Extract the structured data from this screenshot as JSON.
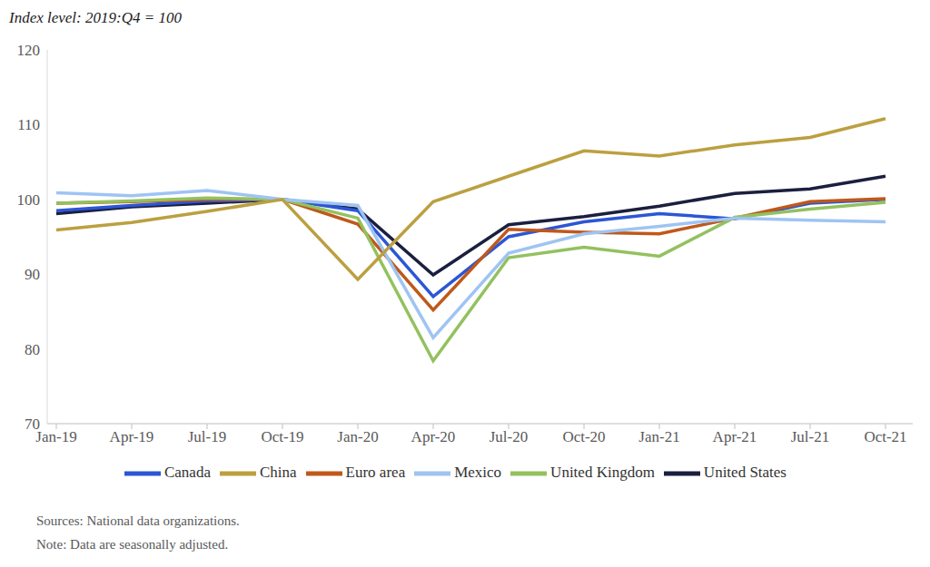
{
  "chart_data": {
    "type": "line",
    "ylabel": "Index level: 2019:Q4 = 100",
    "categories": [
      "Jan-19",
      "Apr-19",
      "Jul-19",
      "Oct-19",
      "Jan-20",
      "Apr-20",
      "Jul-20",
      "Oct-20",
      "Jan-21",
      "Apr-21",
      "Jul-21",
      "Oct-21"
    ],
    "series": [
      {
        "name": "United States",
        "color": "#1b1f3f",
        "values": [
          98.1,
          99.0,
          99.5,
          100,
          98.7,
          89.9,
          96.6,
          97.7,
          99.1,
          100.8,
          101.4,
          103.1
        ]
      },
      {
        "name": "Canada",
        "color": "#2c56d4",
        "values": [
          98.5,
          99.2,
          99.8,
          100,
          98.5,
          87.0,
          95.0,
          97.0,
          98.1,
          97.4,
          99.5,
          100.0
        ]
      },
      {
        "name": "Euro area",
        "color": "#c0581a",
        "values": [
          99.5,
          99.7,
          100.0,
          100,
          96.7,
          85.2,
          96.0,
          95.6,
          95.4,
          97.5,
          99.7,
          100.1
        ]
      },
      {
        "name": "United Kingdom",
        "color": "#93c15f",
        "values": [
          99.5,
          99.8,
          100.2,
          100,
          97.5,
          78.4,
          92.2,
          93.6,
          92.4,
          97.6,
          98.7,
          99.6
        ]
      },
      {
        "name": "Mexico",
        "color": "#9fc4f2",
        "values": [
          100.9,
          100.5,
          101.2,
          100,
          99.2,
          81.5,
          92.8,
          95.4,
          96.4,
          97.5,
          97.2,
          97.0
        ]
      },
      {
        "name": "China",
        "color": "#bba040",
        "values": [
          95.9,
          96.9,
          98.4,
          100,
          89.3,
          99.7,
          103.1,
          106.5,
          105.8,
          107.3,
          108.3,
          110.8
        ]
      }
    ],
    "ylim": [
      70,
      120
    ],
    "yticks": [
      70,
      80,
      90,
      100,
      110,
      120
    ],
    "grid": false,
    "legend": "bottom",
    "notes": [
      "Sources: National data organizations.",
      "Note: Data are seasonally adjusted."
    ]
  }
}
